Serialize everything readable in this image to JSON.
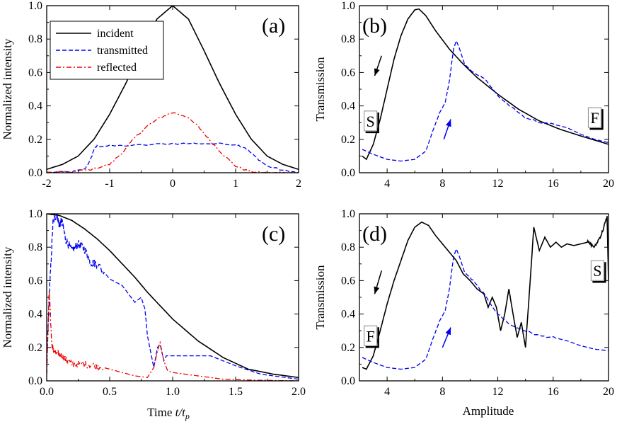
{
  "colors": {
    "incident": "#000000",
    "transmitted": "#0000ee",
    "reflected": "#ee0000"
  },
  "labels": {
    "time_axis": "Time ",
    "time_var": "t/t",
    "time_sub": "p",
    "amplitude_axis": "Amplitude"
  },
  "chart_data": [
    {
      "id": "a",
      "type": "line",
      "panel_label": "(a)",
      "ylabel": "Normalized intensity",
      "xlim": [
        -2,
        2
      ],
      "ylim": [
        0,
        1.0
      ],
      "xticks": [
        -2,
        -1,
        0,
        1,
        2
      ],
      "xtick_labels": [
        "-2",
        "-1",
        "0",
        "1",
        "2"
      ],
      "yticks": [
        0,
        0.2,
        0.4,
        0.6,
        0.8,
        1.0
      ],
      "ytick_labels": [
        "0.0",
        "0.2",
        "0.4",
        "0.6",
        "0.8",
        "1.0"
      ],
      "legend": {
        "position": "top-left",
        "entries": [
          "incident",
          "transmitted",
          "reflected"
        ]
      },
      "series": [
        {
          "name": "incident",
          "style": "solid",
          "x": [
            -2,
            -1.75,
            -1.5,
            -1.25,
            -1,
            -0.75,
            -0.5,
            -0.25,
            0,
            0.25,
            0.5,
            0.75,
            1,
            1.25,
            1.5,
            1.75,
            2
          ],
          "y": [
            0.02,
            0.05,
            0.1,
            0.2,
            0.35,
            0.53,
            0.73,
            0.92,
            1.0,
            0.92,
            0.73,
            0.53,
            0.35,
            0.2,
            0.1,
            0.05,
            0.02
          ]
        },
        {
          "name": "transmitted",
          "style": "dash",
          "x": [
            -2,
            -1.6,
            -1.4,
            -1.3,
            -1.25,
            -1.2,
            -1.0,
            -0.5,
            0,
            0.5,
            1.0,
            1.15,
            1.3,
            1.5,
            1.8,
            2
          ],
          "y": [
            0.0,
            0.005,
            0.02,
            0.08,
            0.14,
            0.16,
            0.16,
            0.165,
            0.175,
            0.175,
            0.17,
            0.15,
            0.1,
            0.04,
            0.01,
            0.0
          ]
        },
        {
          "name": "reflected",
          "style": "dashdot",
          "x": [
            -2,
            -1.6,
            -1.3,
            -1.0,
            -0.8,
            -0.6,
            -0.4,
            -0.2,
            0,
            0.2,
            0.4,
            0.6,
            0.8,
            1.0,
            1.2,
            1.4,
            2
          ],
          "y": [
            0.0,
            0.005,
            0.02,
            0.05,
            0.12,
            0.21,
            0.28,
            0.33,
            0.36,
            0.34,
            0.28,
            0.19,
            0.11,
            0.04,
            0.01,
            0.0,
            0.0
          ]
        }
      ]
    },
    {
      "id": "b",
      "type": "line",
      "panel_label": "(b)",
      "ylabel": "Transmission",
      "xlim": [
        2,
        20
      ],
      "ylim": [
        0,
        1.0
      ],
      "xticks": [
        4,
        8,
        12,
        16,
        20
      ],
      "xtick_labels": [
        "4",
        "8",
        "12",
        "16",
        "20"
      ],
      "yticks": [
        0,
        0.2,
        0.4,
        0.6,
        0.8,
        1.0
      ],
      "ytick_labels": [
        "0.0",
        "0.2",
        "0.4",
        "0.6",
        "0.8",
        "1.0"
      ],
      "annotations": [
        {
          "text": "S",
          "x": 2.8,
          "y": 0.31
        },
        {
          "text": "F",
          "x": 19.0,
          "y": 0.33
        }
      ],
      "arrows": [
        {
          "color": "black",
          "from": [
            3.6,
            0.7
          ],
          "to": [
            3.1,
            0.58
          ]
        },
        {
          "color": "blue",
          "from": [
            8.1,
            0.2
          ],
          "to": [
            8.6,
            0.32
          ]
        }
      ],
      "series": [
        {
          "name": "incident",
          "style": "solid",
          "x": [
            2.2,
            2.5,
            3,
            3.5,
            4,
            4.5,
            5,
            5.5,
            6,
            6.3,
            6.8,
            7.5,
            8.5,
            9.5,
            10.5,
            12,
            13.5,
            15,
            16.5,
            18,
            20
          ],
          "y": [
            0.1,
            0.08,
            0.17,
            0.32,
            0.5,
            0.68,
            0.82,
            0.92,
            0.975,
            0.98,
            0.94,
            0.85,
            0.74,
            0.65,
            0.57,
            0.47,
            0.38,
            0.31,
            0.26,
            0.22,
            0.17
          ]
        },
        {
          "name": "transmitted",
          "style": "dash",
          "x": [
            2.2,
            3,
            4,
            5,
            6,
            6.8,
            7.3,
            7.8,
            8.2,
            8.5,
            8.8,
            9.0,
            9.2,
            9.6,
            10.2,
            11,
            12,
            13,
            14,
            15,
            16,
            17,
            18,
            19,
            20
          ],
          "y": [
            0.14,
            0.11,
            0.08,
            0.07,
            0.08,
            0.13,
            0.25,
            0.36,
            0.42,
            0.55,
            0.74,
            0.79,
            0.75,
            0.65,
            0.6,
            0.57,
            0.46,
            0.39,
            0.33,
            0.3,
            0.29,
            0.27,
            0.23,
            0.2,
            0.18
          ]
        }
      ]
    },
    {
      "id": "c",
      "type": "line",
      "panel_label": "(c)",
      "ylabel": "Normalized intensity",
      "xlabel": "Time t/tp",
      "xlim": [
        0,
        2.0
      ],
      "ylim": [
        0,
        1.0
      ],
      "xticks": [
        0,
        0.5,
        1.0,
        1.5,
        2.0
      ],
      "xtick_labels": [
        "0.0",
        "0.5",
        "1.0",
        "1.5",
        "2.0"
      ],
      "yticks": [
        0,
        0.2,
        0.4,
        0.6,
        0.8,
        1.0
      ],
      "ytick_labels": [
        "0.0",
        "0.2",
        "0.4",
        "0.6",
        "0.8",
        "1.0"
      ],
      "series": [
        {
          "name": "incident",
          "style": "solid",
          "x": [
            0,
            0.1,
            0.2,
            0.3,
            0.4,
            0.5,
            0.6,
            0.7,
            0.8,
            0.9,
            1.0,
            1.2,
            1.4,
            1.6,
            1.8,
            2.0
          ],
          "y": [
            1.0,
            0.99,
            0.96,
            0.91,
            0.85,
            0.78,
            0.7,
            0.62,
            0.53,
            0.45,
            0.37,
            0.24,
            0.14,
            0.07,
            0.04,
            0.02
          ]
        },
        {
          "name": "transmitted",
          "style": "dash",
          "x": [
            0.0,
            0.02,
            0.05,
            0.08,
            0.1,
            0.12,
            0.15,
            0.2,
            0.25,
            0.3,
            0.35,
            0.4,
            0.5,
            0.6,
            0.7,
            0.75,
            0.78,
            0.8,
            0.85,
            0.88,
            0.9,
            0.93,
            0.95,
            1.0,
            1.1,
            1.3,
            1.5,
            1.7,
            1.9,
            2.0
          ],
          "y": [
            0.1,
            0.5,
            0.95,
            1.0,
            0.93,
            0.96,
            0.85,
            0.78,
            0.82,
            0.79,
            0.71,
            0.7,
            0.61,
            0.57,
            0.47,
            0.5,
            0.43,
            0.27,
            0.08,
            0.2,
            0.22,
            0.12,
            0.15,
            0.15,
            0.15,
            0.15,
            0.09,
            0.04,
            0.02,
            0.01
          ]
        },
        {
          "name": "reflected",
          "style": "dashdot",
          "x": [
            0.0,
            0.02,
            0.04,
            0.06,
            0.1,
            0.15,
            0.2,
            0.3,
            0.4,
            0.5,
            0.6,
            0.7,
            0.8,
            0.85,
            0.88,
            0.9,
            0.93,
            0.96,
            1.0,
            1.2,
            1.4,
            1.6,
            2.0
          ],
          "y": [
            0.03,
            0.55,
            0.22,
            0.17,
            0.16,
            0.13,
            0.1,
            0.1,
            0.09,
            0.07,
            0.05,
            0.03,
            0.02,
            0.08,
            0.18,
            0.23,
            0.12,
            0.06,
            0.05,
            0.03,
            0.01,
            0.005,
            0.0
          ]
        }
      ]
    },
    {
      "id": "d",
      "type": "line",
      "panel_label": "(d)",
      "ylabel": "Transmission",
      "xlabel": "Amplitude",
      "xlim": [
        2,
        20
      ],
      "ylim": [
        0,
        1.0
      ],
      "xticks": [
        4,
        8,
        12,
        16,
        20
      ],
      "xtick_labels": [
        "4",
        "8",
        "12",
        "16",
        "20"
      ],
      "yticks": [
        0,
        0.2,
        0.4,
        0.6,
        0.8,
        1.0
      ],
      "ytick_labels": [
        "0.0",
        "0.2",
        "0.4",
        "0.6",
        "0.8",
        "1.0"
      ],
      "annotations": [
        {
          "text": "F",
          "x": 2.8,
          "y": 0.27
        },
        {
          "text": "S",
          "x": 19.2,
          "y": 0.66
        }
      ],
      "arrows": [
        {
          "color": "black",
          "from": [
            3.6,
            0.66
          ],
          "to": [
            3.1,
            0.52
          ]
        },
        {
          "color": "blue",
          "from": [
            8.0,
            0.2
          ],
          "to": [
            8.6,
            0.32
          ]
        }
      ],
      "series": [
        {
          "name": "incident",
          "style": "solid",
          "x": [
            2.2,
            2.5,
            3,
            3.5,
            4,
            4.5,
            5,
            5.5,
            6,
            6.5,
            7,
            7.5,
            8,
            8.5,
            9,
            9.5,
            10,
            10.5,
            11,
            11.3,
            11.6,
            11.9,
            12.2,
            12.5,
            12.8,
            13.1,
            13.4,
            13.7,
            14.0,
            14.3,
            14.6,
            15.0,
            15.4,
            15.8,
            16.2,
            16.6,
            17,
            17.5,
            18,
            18.5,
            19,
            19.5,
            19.9,
            20.0
          ],
          "y": [
            0.08,
            0.07,
            0.15,
            0.3,
            0.46,
            0.6,
            0.72,
            0.84,
            0.92,
            0.95,
            0.93,
            0.87,
            0.82,
            0.77,
            0.72,
            0.64,
            0.6,
            0.55,
            0.52,
            0.44,
            0.5,
            0.44,
            0.3,
            0.4,
            0.55,
            0.4,
            0.26,
            0.35,
            0.2,
            0.55,
            0.92,
            0.78,
            0.86,
            0.8,
            0.83,
            0.8,
            0.82,
            0.81,
            0.82,
            0.83,
            0.8,
            0.88,
            0.98,
            0.6
          ]
        },
        {
          "name": "transmitted",
          "style": "dash",
          "x": [
            2.2,
            3,
            4,
            5,
            6,
            6.8,
            7.3,
            7.8,
            8.2,
            8.5,
            8.8,
            9.0,
            9.2,
            9.6,
            10.2,
            11,
            12,
            13,
            14,
            15,
            16,
            17,
            18,
            19,
            20
          ],
          "y": [
            0.14,
            0.11,
            0.08,
            0.07,
            0.08,
            0.13,
            0.25,
            0.36,
            0.42,
            0.55,
            0.74,
            0.79,
            0.75,
            0.65,
            0.6,
            0.52,
            0.4,
            0.33,
            0.3,
            0.27,
            0.26,
            0.24,
            0.21,
            0.19,
            0.18
          ]
        }
      ]
    }
  ]
}
